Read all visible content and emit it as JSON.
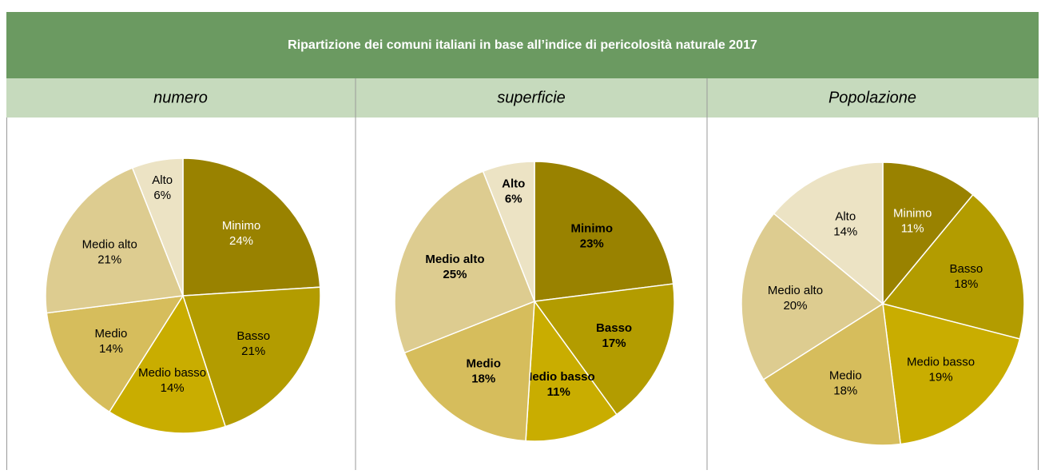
{
  "title": "Ripartizione dei comuni italiani in base all’indice di pericolosità naturale 2017",
  "chart_data": [
    {
      "type": "pie",
      "title": "numero",
      "categories": [
        "Minimo",
        "Basso",
        "Medio basso",
        "Medio",
        "Medio alto",
        "Alto"
      ],
      "values": [
        24,
        21,
        14,
        14,
        21,
        6
      ],
      "value_labels": [
        "24%",
        "21%",
        "14%",
        "14%",
        "21%",
        "6%"
      ],
      "colors": [
        "#998200",
        "#b39c00",
        "#c9ad00",
        "#d6bd5c",
        "#ddcc90",
        "#ece3c4"
      ],
      "label_weight": "normal"
    },
    {
      "type": "pie",
      "title": "superficie",
      "categories": [
        "Minimo",
        "Basso",
        "Medio basso",
        "Medio",
        "Medio alto",
        "Alto"
      ],
      "values": [
        23,
        17,
        11,
        18,
        25,
        6
      ],
      "value_labels": [
        "23%",
        "17%",
        "11%",
        "18%",
        "25%",
        "6%"
      ],
      "colors": [
        "#998200",
        "#b39c00",
        "#c9ad00",
        "#d6bd5c",
        "#ddcc90",
        "#ece3c4"
      ],
      "label_weight": "bold"
    },
    {
      "type": "pie",
      "title": "Popolazione",
      "categories": [
        "Minimo",
        "Basso",
        "Medio basso",
        "Medio",
        "Medio alto",
        "Alto"
      ],
      "values": [
        11,
        18,
        19,
        18,
        20,
        14
      ],
      "value_labels": [
        "11%",
        "18%",
        "19%",
        "18%",
        "20%",
        "14%"
      ],
      "colors": [
        "#998200",
        "#b39c00",
        "#c9ad00",
        "#d6bd5c",
        "#ddcc90",
        "#ece3c4"
      ],
      "label_weight": "normal"
    }
  ]
}
